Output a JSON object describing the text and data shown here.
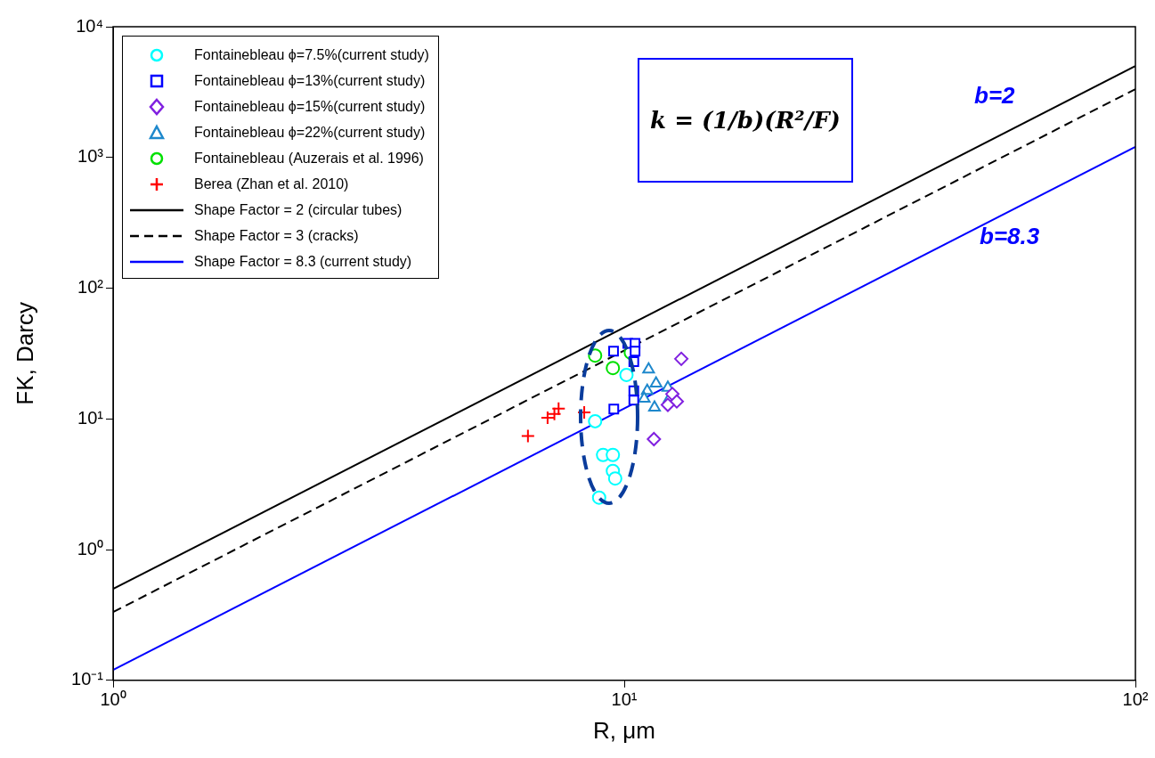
{
  "chart_data": {
    "type": "scatter",
    "xlabel": "R, μm",
    "ylabel": "FK, Darcy",
    "log": "xy",
    "grid": false,
    "legend": "top left",
    "xlim": [
      1,
      100
    ],
    "xticks": [
      {
        "value": 1,
        "label": "10⁰"
      },
      {
        "value": 10,
        "label": "10¹"
      },
      {
        "value": 100,
        "label": "10²"
      }
    ],
    "ylim": [
      0.1,
      10000
    ],
    "yticks": [
      {
        "value": 0.1,
        "label": "10⁻¹"
      },
      {
        "value": 1,
        "label": "10⁰"
      },
      {
        "value": 10,
        "label": "10¹"
      },
      {
        "value": 100,
        "label": "10²"
      },
      {
        "value": 1000,
        "label": "10³"
      },
      {
        "value": 10000,
        "label": "10⁴"
      }
    ],
    "annotations": [
      "k = (1/b)(R²/F)",
      "b=2",
      "b=8.3"
    ],
    "series": [
      {
        "name": "Fontainebleau ϕ=7.5%(current study)",
        "marker": "circle",
        "color": "#00ffff",
        "x": [
          8.77,
          9.09,
          9.5,
          9.5,
          9.6,
          8.93,
          10.1
        ],
        "values": [
          9.6,
          5.3,
          5.3,
          4.0,
          3.5,
          2.5,
          21.7
        ]
      },
      {
        "name": "Fontainebleau ϕ=13%(current study)",
        "marker": "square",
        "color": "#0000ff",
        "x": [
          9.53,
          10.16,
          10.5,
          10.5,
          10.44,
          10.44,
          10.44,
          9.54
        ],
        "values": [
          33,
          37.8,
          37.8,
          33,
          27.4,
          16.4,
          13.9,
          11.9
        ]
      },
      {
        "name": "Fontainebleau ϕ=15%(current study)",
        "marker": "diamond",
        "color": "#8020e0",
        "x": [
          12.93,
          12.42,
          12.67,
          12.17,
          11.43
        ],
        "values": [
          28.8,
          15.5,
          13.6,
          12.8,
          7.0
        ]
      },
      {
        "name": "Fontainebleau ϕ=22%(current study)",
        "marker": "triangle",
        "color": "#1e88cc",
        "x": [
          11.16,
          11.54,
          11.09,
          12.17,
          12.25,
          11.46,
          10.94
        ],
        "values": [
          23.9,
          18.7,
          16.4,
          17.3,
          14.3,
          12.2,
          14.3
        ]
      },
      {
        "name": "Fontainebleau (Auzerais et al. 1996)",
        "marker": "circle",
        "color": "#00e000",
        "x": [
          8.77,
          9.5,
          10.3
        ],
        "values": [
          30.5,
          24.5,
          32.1
        ]
      },
      {
        "name": "Berea (Zhan et al. 2010)",
        "marker": "cross",
        "color": "#ff0000",
        "x": [
          6.48,
          7.08,
          7.3,
          7.44,
          8.35
        ],
        "values": [
          7.4,
          10.2,
          10.9,
          12.0,
          11.2
        ]
      },
      {
        "name": "Shape Factor = 2 (circular tubes)",
        "type": "line",
        "marker": "none",
        "line_style": "solid",
        "color": "#000000",
        "x": [
          1,
          100
        ],
        "values": [
          0.5,
          5000
        ]
      },
      {
        "name": "Shape Factor = 3 (cracks)",
        "type": "line",
        "marker": "none",
        "line_style": "dashed",
        "color": "#000000",
        "x": [
          1,
          100
        ],
        "values": [
          0.333,
          3333
        ]
      },
      {
        "name": "Shape Factor = 8.3 (current study)",
        "type": "line",
        "marker": "none",
        "line_style": "solid",
        "color": "#0000ff",
        "x": [
          1,
          100
        ],
        "values": [
          0.12,
          1205
        ]
      }
    ]
  }
}
